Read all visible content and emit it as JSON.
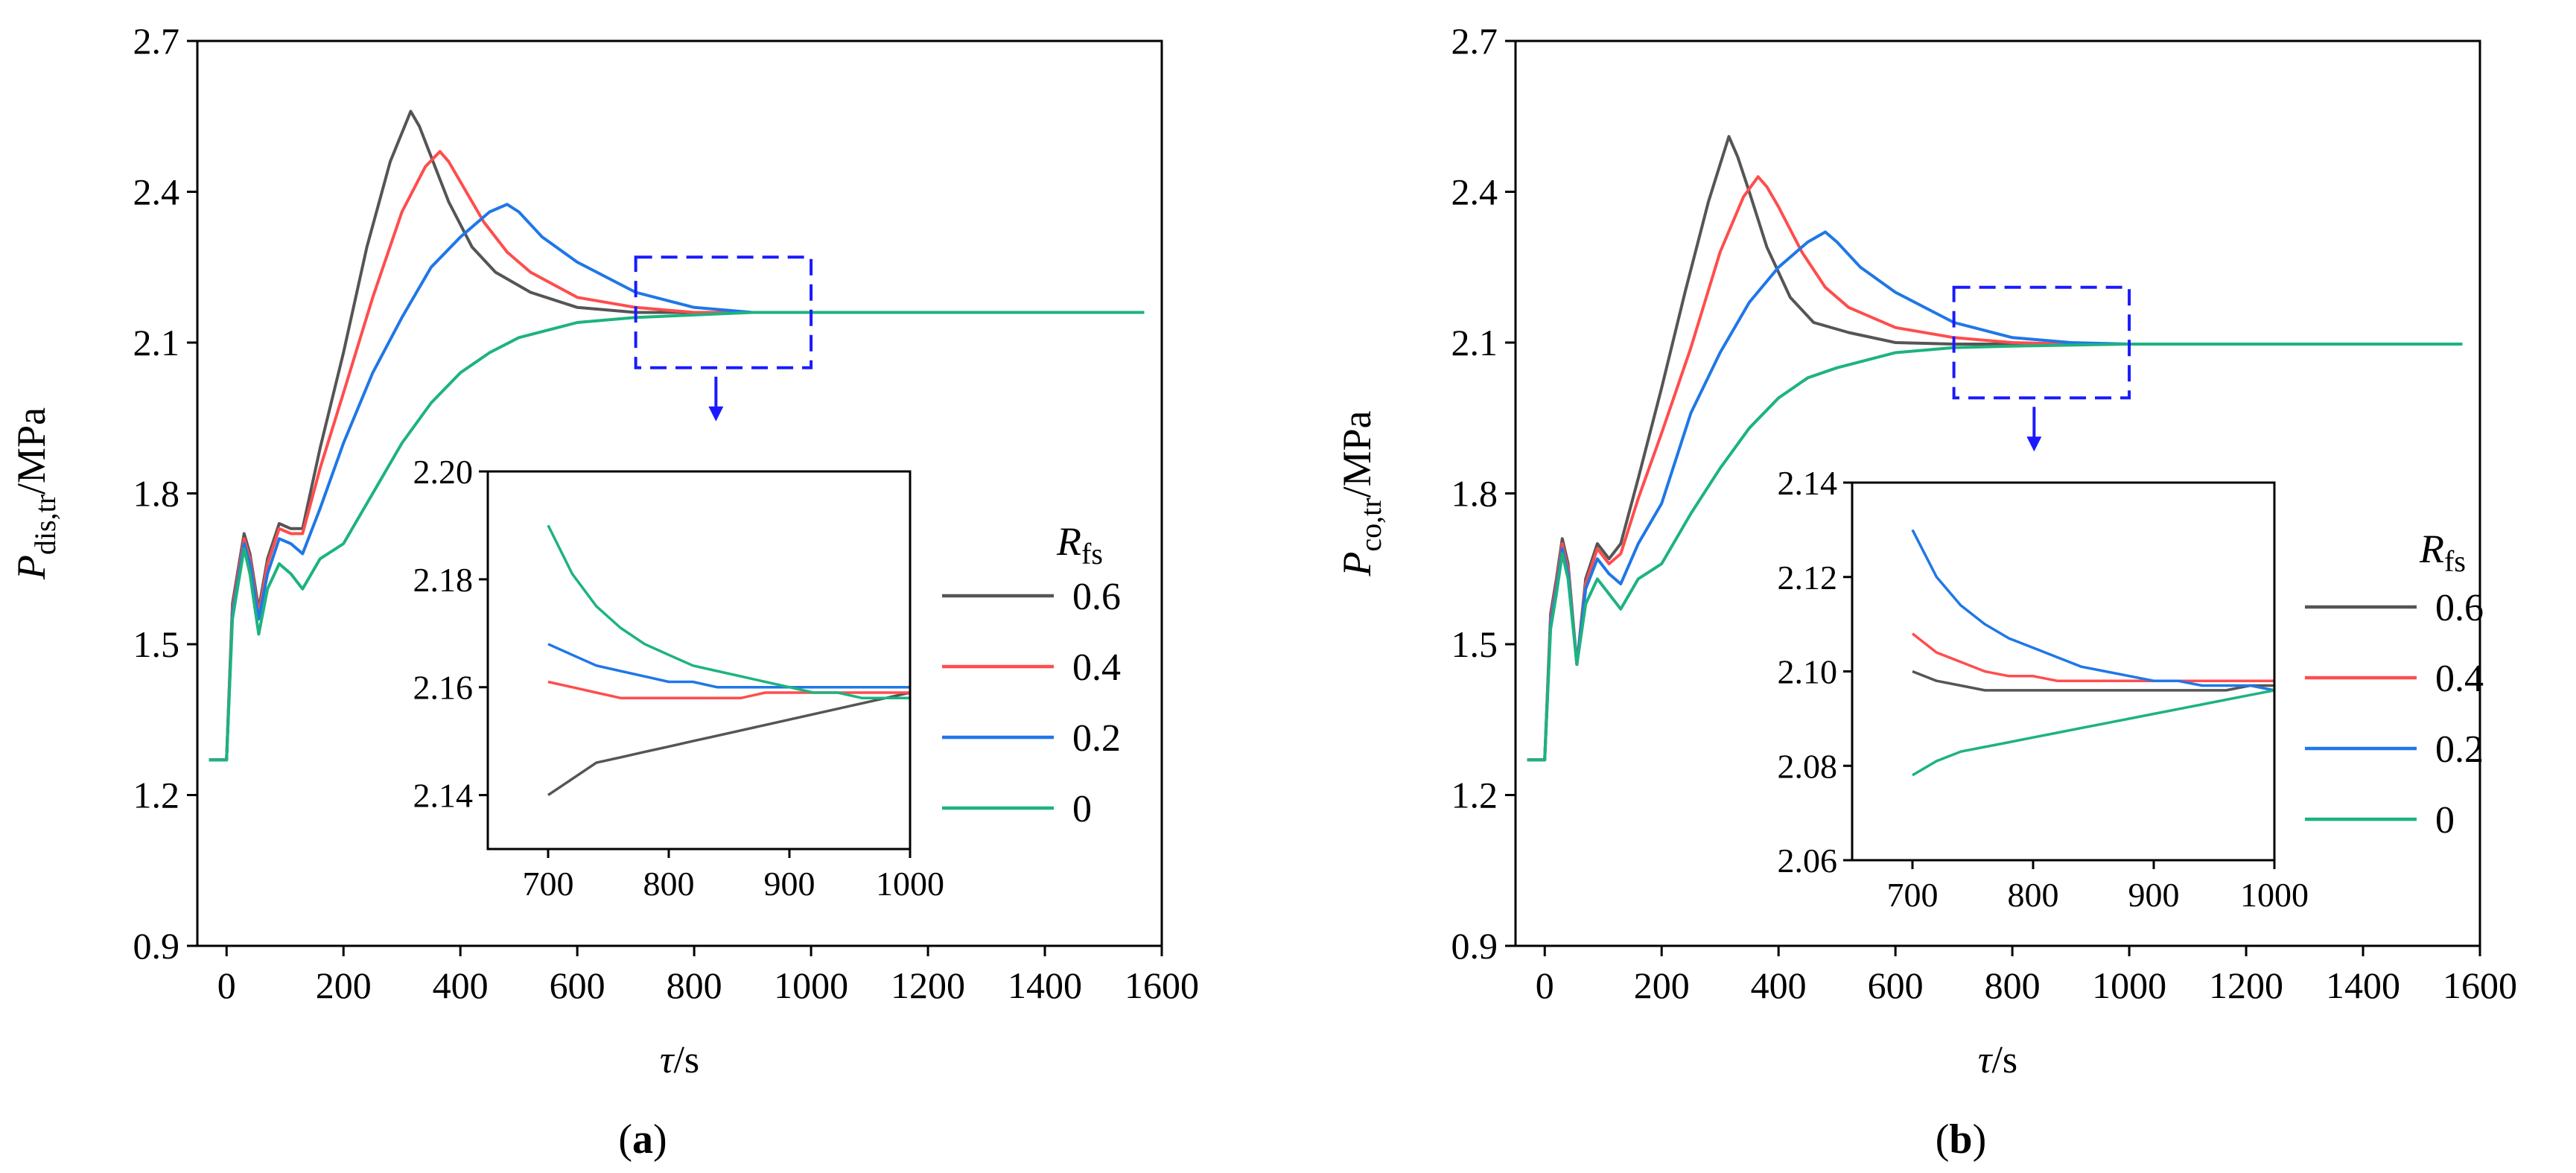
{
  "chart_data": [
    {
      "type": "line",
      "panel_label": "a",
      "ylabel_main": "P",
      "ylabel_sub": "dis,tr",
      "ylabel_unit": "/MPa",
      "xlabel_main": "τ",
      "xlabel_unit": "/s",
      "xlim": [
        -50,
        1600
      ],
      "ylim": [
        0.9,
        2.7
      ],
      "xticks": [
        "0",
        "200",
        "400",
        "600",
        "800",
        "1000",
        "1200",
        "1400",
        "1600"
      ],
      "yticks": [
        "0.9",
        "1.2",
        "1.5",
        "1.8",
        "2.1",
        "2.4",
        "2.7"
      ],
      "legend": {
        "title_main": "R",
        "title_sub": "fs",
        "entries": [
          "0.6",
          "0.4",
          "0.2",
          "0"
        ]
      },
      "colors": [
        "#555555",
        "#ff4d4d",
        "#1f77e8",
        "#1db37f"
      ],
      "final_value": 2.16,
      "series": [
        {
          "name": "0.6",
          "x": [
            -30,
            0,
            10,
            20,
            30,
            40,
            55,
            70,
            90,
            110,
            130,
            160,
            200,
            240,
            280,
            315,
            330,
            350,
            380,
            420,
            460,
            520,
            600,
            700,
            800,
            900,
            1000,
            1200,
            1400,
            1570
          ],
          "y": [
            1.27,
            1.27,
            1.58,
            1.65,
            1.72,
            1.68,
            1.57,
            1.67,
            1.74,
            1.73,
            1.73,
            1.89,
            2.08,
            2.29,
            2.46,
            2.56,
            2.53,
            2.47,
            2.38,
            2.29,
            2.24,
            2.2,
            2.17,
            2.16,
            2.16,
            2.16,
            2.16,
            2.16,
            2.16,
            2.16
          ]
        },
        {
          "name": "0.4",
          "x": [
            -30,
            0,
            10,
            20,
            30,
            40,
            55,
            70,
            90,
            110,
            130,
            160,
            200,
            250,
            300,
            340,
            365,
            380,
            400,
            440,
            480,
            520,
            600,
            700,
            800,
            900,
            1000,
            1200,
            1400,
            1570
          ],
          "y": [
            1.27,
            1.27,
            1.57,
            1.64,
            1.71,
            1.67,
            1.56,
            1.66,
            1.73,
            1.72,
            1.72,
            1.85,
            2.0,
            2.19,
            2.36,
            2.45,
            2.48,
            2.46,
            2.42,
            2.34,
            2.28,
            2.24,
            2.19,
            2.17,
            2.16,
            2.16,
            2.16,
            2.16,
            2.16,
            2.16
          ]
        },
        {
          "name": "0.2",
          "x": [
            -30,
            0,
            10,
            20,
            30,
            40,
            55,
            70,
            90,
            110,
            130,
            160,
            200,
            250,
            300,
            350,
            400,
            450,
            480,
            500,
            540,
            600,
            700,
            800,
            900,
            1000,
            1200,
            1400,
            1570
          ],
          "y": [
            1.27,
            1.27,
            1.56,
            1.63,
            1.7,
            1.66,
            1.55,
            1.64,
            1.71,
            1.7,
            1.68,
            1.77,
            1.9,
            2.04,
            2.15,
            2.25,
            2.31,
            2.36,
            2.375,
            2.36,
            2.31,
            2.26,
            2.2,
            2.17,
            2.16,
            2.16,
            2.16,
            2.16,
            2.16
          ]
        },
        {
          "name": "0",
          "x": [
            -30,
            0,
            10,
            20,
            30,
            40,
            55,
            70,
            90,
            110,
            130,
            160,
            200,
            250,
            300,
            350,
            400,
            450,
            500,
            600,
            700,
            800,
            900,
            1000,
            1200,
            1400,
            1570
          ],
          "y": [
            1.27,
            1.27,
            1.55,
            1.62,
            1.69,
            1.64,
            1.52,
            1.61,
            1.66,
            1.64,
            1.61,
            1.67,
            1.7,
            1.8,
            1.9,
            1.98,
            2.04,
            2.08,
            2.11,
            2.14,
            2.15,
            2.155,
            2.16,
            2.16,
            2.16,
            2.16,
            2.16
          ]
        }
      ],
      "inset": {
        "xlim": [
          650,
          1000
        ],
        "ylim": [
          2.13,
          2.2
        ],
        "xticks": [
          "700",
          "800",
          "900",
          "1000"
        ],
        "yticks": [
          "2.14",
          "2.16",
          "2.18",
          "2.20"
        ],
        "series": [
          {
            "name": "0.6",
            "x": [
              700,
              720,
              740,
              760,
              780,
              800,
              820,
              840,
              860,
              880,
              900,
              920,
              940,
              960,
              980,
              1000
            ],
            "y": [
              2.14,
              2.143,
              2.146,
              2.147,
              2.148,
              2.149,
              2.15,
              2.151,
              2.152,
              2.153,
              2.154,
              2.155,
              2.156,
              2.157,
              2.158,
              2.159
            ]
          },
          {
            "name": "0.4",
            "x": [
              700,
              720,
              740,
              760,
              780,
              800,
              820,
              840,
              860,
              880,
              900,
              920,
              940,
              960,
              980,
              1000
            ],
            "y": [
              2.161,
              2.16,
              2.159,
              2.158,
              2.158,
              2.158,
              2.158,
              2.158,
              2.158,
              2.159,
              2.159,
              2.159,
              2.159,
              2.159,
              2.159,
              2.159
            ]
          },
          {
            "name": "0.2",
            "x": [
              700,
              720,
              740,
              760,
              780,
              800,
              820,
              840,
              860,
              880,
              900,
              920,
              940,
              960,
              980,
              1000
            ],
            "y": [
              2.168,
              2.166,
              2.164,
              2.163,
              2.162,
              2.161,
              2.161,
              2.16,
              2.16,
              2.16,
              2.16,
              2.16,
              2.16,
              2.16,
              2.16,
              2.16
            ]
          },
          {
            "name": "0",
            "x": [
              700,
              720,
              740,
              760,
              780,
              800,
              820,
              840,
              860,
              880,
              900,
              920,
              940,
              960,
              980,
              1000
            ],
            "y": [
              2.19,
              2.181,
              2.175,
              2.171,
              2.168,
              2.166,
              2.164,
              2.163,
              2.162,
              2.161,
              2.16,
              2.159,
              2.159,
              2.158,
              2.158,
              2.158
            ]
          }
        ]
      }
    },
    {
      "type": "line",
      "panel_label": "b",
      "ylabel_main": "P",
      "ylabel_sub": "co,tr",
      "ylabel_unit": "/MPa",
      "xlabel_main": "τ",
      "xlabel_unit": "/s",
      "xlim": [
        -50,
        1600
      ],
      "ylim": [
        0.9,
        2.7
      ],
      "xticks": [
        "0",
        "200",
        "400",
        "600",
        "800",
        "1000",
        "1200",
        "1400",
        "1600"
      ],
      "yticks": [
        "0.9",
        "1.2",
        "1.5",
        "1.8",
        "2.1",
        "2.4",
        "2.7"
      ],
      "legend": {
        "title_main": "R",
        "title_sub": "fs",
        "entries": [
          "0.6",
          "0.4",
          "0.2",
          "0"
        ]
      },
      "colors": [
        "#555555",
        "#ff4d4d",
        "#1f77e8",
        "#1db37f"
      ],
      "final_value": 2.097,
      "series": [
        {
          "name": "0.6",
          "x": [
            -30,
            0,
            10,
            20,
            30,
            40,
            55,
            70,
            90,
            110,
            130,
            160,
            200,
            240,
            280,
            315,
            330,
            350,
            380,
            420,
            460,
            520,
            600,
            700,
            800,
            900,
            1000,
            1200,
            1400,
            1570
          ],
          "y": [
            1.27,
            1.27,
            1.56,
            1.63,
            1.71,
            1.66,
            1.46,
            1.63,
            1.7,
            1.67,
            1.7,
            1.83,
            2.01,
            2.2,
            2.38,
            2.51,
            2.47,
            2.4,
            2.29,
            2.19,
            2.14,
            2.12,
            2.1,
            2.097,
            2.097,
            2.097,
            2.097,
            2.097,
            2.097,
            2.097
          ]
        },
        {
          "name": "0.4",
          "x": [
            -30,
            0,
            10,
            20,
            30,
            40,
            55,
            70,
            90,
            110,
            130,
            160,
            200,
            250,
            300,
            340,
            365,
            380,
            400,
            440,
            480,
            520,
            600,
            700,
            800,
            900,
            1000,
            1200,
            1400,
            1570
          ],
          "y": [
            1.27,
            1.27,
            1.55,
            1.62,
            1.7,
            1.65,
            1.46,
            1.62,
            1.69,
            1.66,
            1.68,
            1.79,
            1.92,
            2.09,
            2.28,
            2.39,
            2.43,
            2.41,
            2.37,
            2.28,
            2.21,
            2.17,
            2.13,
            2.11,
            2.1,
            2.097,
            2.097,
            2.097,
            2.097,
            2.097
          ]
        },
        {
          "name": "0.2",
          "x": [
            -30,
            0,
            10,
            20,
            30,
            40,
            55,
            70,
            90,
            110,
            130,
            160,
            200,
            250,
            300,
            350,
            400,
            450,
            480,
            500,
            540,
            600,
            700,
            800,
            900,
            1000,
            1200,
            1400,
            1570
          ],
          "y": [
            1.27,
            1.27,
            1.54,
            1.61,
            1.69,
            1.64,
            1.46,
            1.61,
            1.67,
            1.64,
            1.62,
            1.7,
            1.78,
            1.96,
            2.08,
            2.18,
            2.25,
            2.3,
            2.32,
            2.3,
            2.25,
            2.2,
            2.14,
            2.11,
            2.1,
            2.097,
            2.097,
            2.097,
            2.097
          ]
        },
        {
          "name": "0",
          "x": [
            -30,
            0,
            10,
            20,
            30,
            40,
            55,
            70,
            90,
            110,
            130,
            160,
            200,
            250,
            300,
            350,
            400,
            450,
            500,
            600,
            700,
            800,
            900,
            1000,
            1200,
            1400,
            1570
          ],
          "y": [
            1.27,
            1.27,
            1.53,
            1.6,
            1.68,
            1.63,
            1.46,
            1.58,
            1.63,
            1.6,
            1.57,
            1.63,
            1.66,
            1.76,
            1.85,
            1.93,
            1.99,
            2.03,
            2.05,
            2.08,
            2.09,
            2.093,
            2.095,
            2.097,
            2.097,
            2.097,
            2.097
          ]
        }
      ],
      "inset": {
        "xlim": [
          650,
          1000
        ],
        "ylim": [
          2.06,
          2.14
        ],
        "xticks": [
          "700",
          "800",
          "900",
          "1000"
        ],
        "yticks": [
          "2.06",
          "2.08",
          "2.10",
          "2.12",
          "2.14"
        ],
        "series": [
          {
            "name": "0.6",
            "x": [
              700,
              720,
              740,
              760,
              780,
              800,
              820,
              840,
              860,
              880,
              900,
              920,
              940,
              960,
              980,
              1000
            ],
            "y": [
              2.1,
              2.098,
              2.097,
              2.096,
              2.096,
              2.096,
              2.096,
              2.096,
              2.096,
              2.096,
              2.096,
              2.096,
              2.096,
              2.096,
              2.097,
              2.097
            ]
          },
          {
            "name": "0.4",
            "x": [
              700,
              720,
              740,
              760,
              780,
              800,
              820,
              840,
              860,
              880,
              900,
              920,
              940,
              960,
              980,
              1000
            ],
            "y": [
              2.108,
              2.104,
              2.102,
              2.1,
              2.099,
              2.099,
              2.098,
              2.098,
              2.098,
              2.098,
              2.098,
              2.098,
              2.098,
              2.098,
              2.098,
              2.098
            ]
          },
          {
            "name": "0.2",
            "x": [
              700,
              720,
              740,
              760,
              780,
              800,
              820,
              840,
              860,
              880,
              900,
              920,
              940,
              960,
              980,
              1000
            ],
            "y": [
              2.13,
              2.12,
              2.114,
              2.11,
              2.107,
              2.105,
              2.103,
              2.101,
              2.1,
              2.099,
              2.098,
              2.098,
              2.097,
              2.097,
              2.097,
              2.096
            ]
          },
          {
            "name": "0",
            "x": [
              700,
              720,
              740,
              760,
              780,
              800,
              820,
              840,
              860,
              880,
              900,
              920,
              940,
              960,
              980,
              1000
            ],
            "y": [
              2.078,
              2.081,
              2.083,
              2.084,
              2.085,
              2.086,
              2.087,
              2.088,
              2.089,
              2.09,
              2.091,
              2.092,
              2.093,
              2.094,
              2.095,
              2.096
            ]
          }
        ]
      }
    }
  ]
}
